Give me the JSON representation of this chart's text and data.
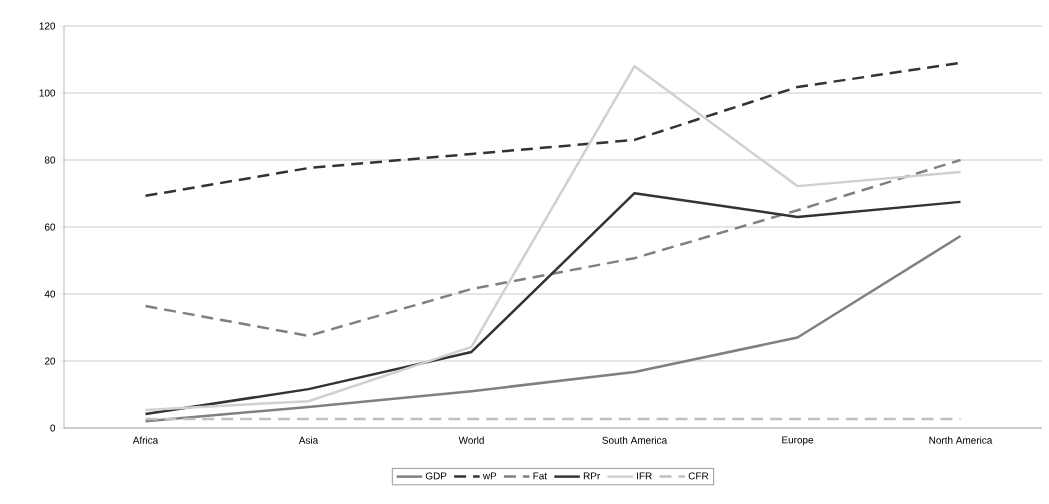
{
  "chart_data": {
    "type": "line",
    "categories": [
      "Africa",
      "Asia",
      "World",
      "South America",
      "Europe",
      "North America"
    ],
    "series": [
      {
        "name": "GDP",
        "color": "#808080",
        "line_style": "solid",
        "values": [
          2,
          6.3,
          11,
          16.7,
          27,
          57.3
        ]
      },
      {
        "name": "wP",
        "color": "#333333",
        "line_style": "dashed",
        "values": [
          69.3,
          77.6,
          81.8,
          86,
          101.8,
          109
        ]
      },
      {
        "name": "Fat",
        "color": "#808080",
        "line_style": "dashed",
        "values": [
          36.4,
          27.5,
          41.5,
          50.7,
          65,
          80
        ]
      },
      {
        "name": "RPr",
        "color": "#333333",
        "line_style": "solid",
        "values": [
          4.2,
          11.6,
          22.7,
          70.1,
          63,
          67.5
        ]
      },
      {
        "name": "IFR",
        "color": "#d0d0d0",
        "line_style": "solid",
        "values": [
          5.4,
          8,
          24.2,
          108,
          72.2,
          76.4
        ]
      },
      {
        "name": "CFR",
        "color": "#c0c0c0",
        "line_style": "dashed",
        "values": [
          2.7,
          2.7,
          2.7,
          2.7,
          2.7,
          2.7
        ]
      }
    ],
    "ylim": [
      0,
      120
    ],
    "yticks": [
      0,
      20,
      40,
      60,
      80,
      100,
      120
    ],
    "grid": "y",
    "legend": "bottom",
    "marker": "none"
  }
}
